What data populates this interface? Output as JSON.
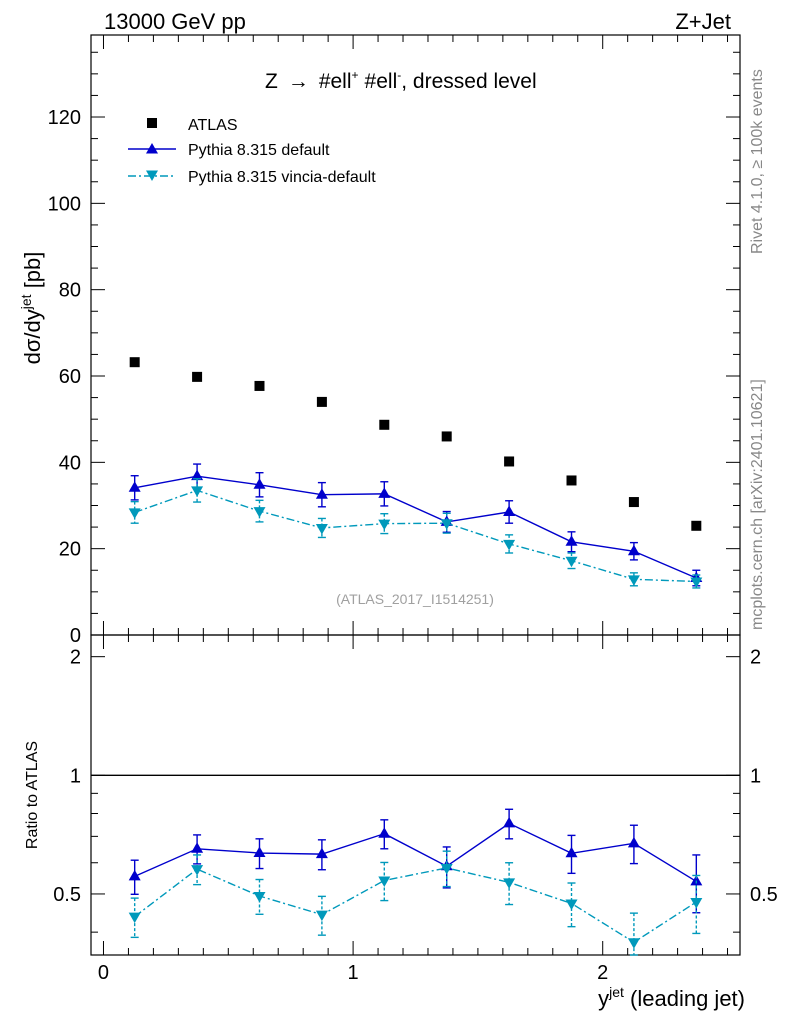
{
  "header": {
    "left": "13000 GeV pp",
    "right": "Z+Jet"
  },
  "side_labels": {
    "rivet": "Rivet 4.1.0, ≥ 100k events",
    "mcplots": "mcplots.cern.ch [arXiv:2401.10621]"
  },
  "colors": {
    "atlas": "#000000",
    "default": "#0000cc",
    "vincia": "#0099bb"
  },
  "chart_data": [
    {
      "type": "scatter",
      "title": "Z → #ell⁺ #ell⁻, dressed level",
      "title_parts": {
        "z": "Z",
        "arrow": "→",
        "ell1": "#ell",
        "sup1": "+",
        "ell2": "#ell",
        "sup2": "-",
        "rest": ", dressed level"
      },
      "ylabel": "dσ/dy^jet [pb]",
      "ylabel_parts": {
        "main": "dσ/dy",
        "sup": "jet",
        "unit": " [pb]"
      },
      "watermark": "(ATLAS_2017_I1514251)",
      "xlim": [
        -0.05,
        2.55
      ],
      "ylim": [
        0,
        139
      ],
      "y_ticks": [
        0,
        20,
        40,
        60,
        80,
        100,
        120
      ],
      "x": [
        0.125,
        0.375,
        0.625,
        0.875,
        1.125,
        1.375,
        1.625,
        1.875,
        2.125,
        2.375
      ],
      "series": [
        {
          "name": "ATLAS",
          "key": "atlas",
          "marker": "square",
          "values": [
            63.2,
            59.8,
            57.7,
            54.0,
            48.7,
            46.0,
            40.2,
            35.8,
            30.8,
            25.3
          ],
          "errors": [
            0,
            0,
            0,
            0,
            0,
            0,
            0,
            0,
            0,
            0
          ]
        },
        {
          "name": "Pythia 8.315 default",
          "key": "default",
          "marker": "triangle-up",
          "line": "solid",
          "values": [
            34.1,
            36.8,
            34.8,
            32.5,
            32.7,
            26.2,
            28.5,
            21.6,
            19.4,
            13.2
          ],
          "errors": [
            2.8,
            2.8,
            2.8,
            2.8,
            2.8,
            2.4,
            2.6,
            2.3,
            2.0,
            1.8
          ]
        },
        {
          "name": "Pythia 8.315 vincia-default",
          "key": "vincia",
          "marker": "triangle-down",
          "line": "dashdot",
          "values": [
            28.4,
            33.5,
            28.7,
            24.8,
            25.8,
            25.9,
            21.1,
            17.2,
            12.9,
            12.4
          ],
          "errors": [
            2.5,
            2.7,
            2.5,
            2.2,
            2.3,
            2.3,
            2.1,
            1.8,
            1.5,
            1.5
          ]
        }
      ]
    },
    {
      "type": "line",
      "ylabel": "Ratio to ATLAS",
      "xlabel": "y^jet (leading jet)",
      "xlabel_parts": {
        "main": "y",
        "sup": "jet",
        "rest": " (leading jet)"
      },
      "xlim": [
        -0.05,
        2.55
      ],
      "ylim": [
        0.35,
        2.27
      ],
      "y_ticks": [
        0.5,
        1,
        2
      ],
      "y_tick_labels": [
        "0.5",
        "1",
        "2"
      ],
      "x_ticks": [
        0,
        1,
        2
      ],
      "x_tick_labels": [
        "0",
        "1",
        "2"
      ],
      "reference_line": 1,
      "x": [
        0.125,
        0.375,
        0.625,
        0.875,
        1.125,
        1.375,
        1.625,
        1.875,
        2.125,
        2.375
      ],
      "series": [
        {
          "name": "Pythia 8.315 default",
          "key": "default",
          "marker": "triangle-up",
          "line": "solid",
          "values": [
            0.554,
            0.651,
            0.635,
            0.631,
            0.711,
            0.588,
            0.755,
            0.634,
            0.672,
            0.538
          ],
          "errors": [
            0.055,
            0.055,
            0.055,
            0.055,
            0.06,
            0.07,
            0.065,
            0.07,
            0.075,
            0.09
          ]
        },
        {
          "name": "Pythia 8.315 vincia-default",
          "key": "vincia",
          "marker": "triangle-down",
          "line": "dashdot",
          "values": [
            0.438,
            0.578,
            0.494,
            0.443,
            0.541,
            0.582,
            0.535,
            0.473,
            0.377,
            0.477
          ],
          "errors": [
            0.05,
            0.05,
            0.05,
            0.05,
            0.06,
            0.06,
            0.065,
            0.06,
            0.07,
            0.08
          ]
        }
      ]
    }
  ]
}
